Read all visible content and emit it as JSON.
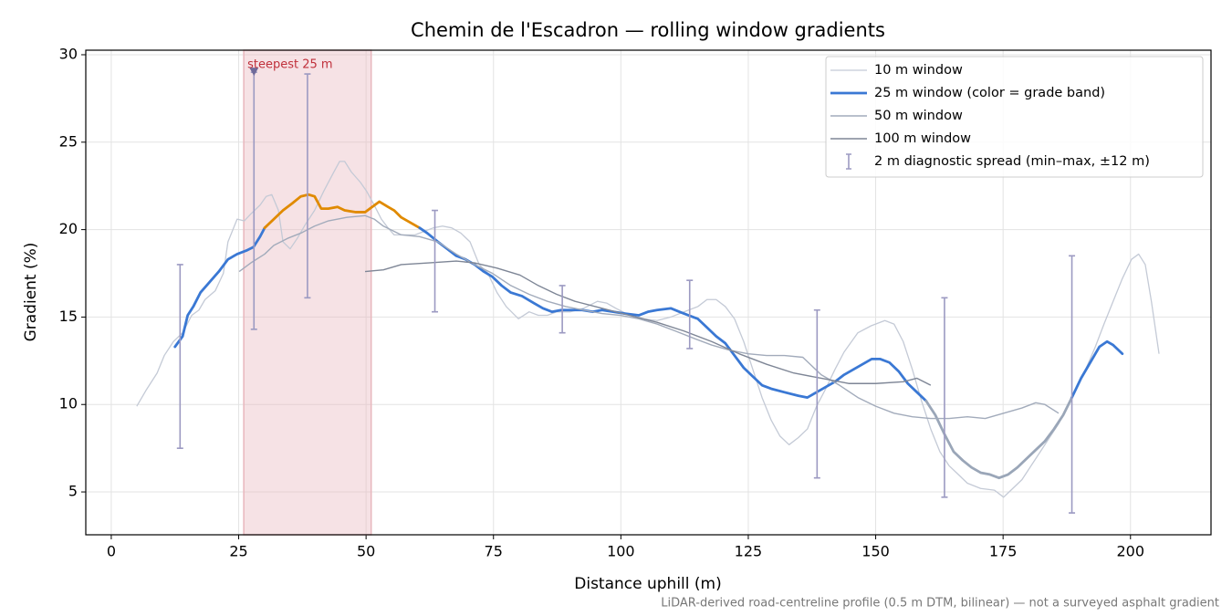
{
  "chart_data": {
    "type": "line",
    "title": "Chemin de l'Escadron — rolling window gradients",
    "x_label": "Distance uphill (m)",
    "y_label": "Gradient (%)",
    "footnote": "LiDAR-derived road-centreline profile (0.5 m DTM, bilinear) — not a surveyed asphalt gradient",
    "xlim": [
      -5,
      215.8
    ],
    "ylim": [
      2.55,
      30.26
    ],
    "xticks": [
      0,
      25,
      50,
      75,
      100,
      125,
      150,
      175,
      200
    ],
    "yticks": [
      5,
      10,
      15,
      20,
      25,
      30
    ],
    "grid": true,
    "legend": "upper right",
    "highlight": {
      "xlim": [
        26,
        51
      ],
      "color": "#e8b7bd",
      "label": "steepest 25 m",
      "label_color": "#c0303b",
      "marker_x": 28,
      "marker_y": 29,
      "marker_color": "#6f6a9a"
    },
    "series": [
      {
        "name": "10 m window",
        "color": "#c4cad6",
        "linewidth": 1.3,
        "x": [
          5,
          6.8,
          9,
          10.4,
          12.2,
          14,
          15.8,
          17.2,
          18.4,
          20.4,
          22,
          22.9,
          24.7,
          26.1,
          27.4,
          29.2,
          30.4,
          31.5,
          32.8,
          33.7,
          35.1,
          36.5,
          38.1,
          39.9,
          41.7,
          43.5,
          44.8,
          45.8,
          47.1,
          48.9,
          50.1,
          51.6,
          53,
          54.3,
          55.5,
          57.8,
          59.6,
          61.4,
          63.2,
          65,
          66.8,
          68.6,
          70.4,
          72.2,
          73.9,
          75.7,
          77.5,
          79.9,
          82,
          83.8,
          85.6,
          87.4,
          90.1,
          92.7,
          95.4,
          97.2,
          99,
          101.7,
          104.4,
          107.1,
          109.8,
          112.4,
          115.1,
          116.9,
          118.7,
          120.5,
          122.3,
          124.1,
          125.9,
          127.7,
          129.5,
          131.2,
          133,
          134.8,
          136.6,
          138.4,
          140.2,
          142,
          143.8,
          146.5,
          149.1,
          151.8,
          153.6,
          155.4,
          157.2,
          159,
          160.8,
          162.6,
          164.4,
          166.2,
          168,
          170.6,
          173.3,
          175.1,
          176.9,
          178.7,
          180.5,
          182.3,
          184.1,
          185.9,
          187.6,
          189.4,
          191.2,
          193.1,
          194.8,
          196.6,
          198.4,
          200.2,
          201.6,
          202.9,
          204.1,
          205.6
        ],
        "values": [
          9.9,
          10.8,
          11.8,
          12.8,
          13.6,
          14.1,
          15.1,
          15.4,
          16,
          16.5,
          17.5,
          19.3,
          20.6,
          20.5,
          20.9,
          21.4,
          21.9,
          22,
          21.1,
          19.3,
          18.9,
          19.5,
          20.3,
          21.1,
          22.2,
          23.2,
          23.9,
          23.9,
          23.3,
          22.7,
          22.2,
          21.4,
          20.6,
          20.1,
          19.7,
          19.7,
          19.7,
          19.9,
          20.1,
          20.2,
          20.1,
          19.8,
          19.3,
          18,
          17.5,
          16.4,
          15.6,
          14.9,
          15.3,
          15.1,
          15.1,
          15.3,
          15.3,
          15.5,
          15.9,
          15.8,
          15.5,
          15.1,
          14.9,
          14.8,
          15,
          15.3,
          15.6,
          16,
          16,
          15.6,
          14.9,
          13.6,
          12,
          10.4,
          9.1,
          8.2,
          7.7,
          8.1,
          8.6,
          9.9,
          10.9,
          12,
          13,
          14.1,
          14.5,
          14.8,
          14.6,
          13.6,
          12,
          10.2,
          8.6,
          7.3,
          6.5,
          6,
          5.5,
          5.2,
          5.1,
          4.7,
          5.2,
          5.7,
          6.5,
          7.3,
          8.1,
          8.9,
          9.9,
          10.9,
          12,
          13.3,
          14.6,
          15.9,
          17.2,
          18.3,
          18.6,
          18,
          15.9,
          12.9
        ]
      },
      {
        "name": "25 m window (color = grade band)",
        "color": "#3a78d4",
        "linewidth": 2.8,
        "band_thresholds": [
          10,
          20
        ],
        "band_colors": [
          "#9aa6b8",
          "#3a78d4",
          "#e08a00"
        ],
        "x": [
          12.5,
          14,
          15,
          16.1,
          17.5,
          19.3,
          21.1,
          22.9,
          24.7,
          26.5,
          27.9,
          29.2,
          30.1,
          31.9,
          33.7,
          35.5,
          37.2,
          38.7,
          39.9,
          41.2,
          42.6,
          44.4,
          45.8,
          48,
          49.8,
          51.2,
          52.6,
          54.3,
          55.5,
          56.9,
          58.7,
          60.5,
          62,
          64.1,
          65.9,
          67.7,
          69.5,
          71.3,
          73.1,
          74.8,
          76.6,
          78.4,
          80.6,
          82.9,
          84.7,
          86.5,
          88.3,
          90.1,
          92.4,
          94.5,
          96.3,
          98.5,
          100.8,
          103.5,
          105.3,
          107.1,
          109.8,
          111.5,
          113.3,
          115.1,
          116.9,
          118.7,
          120.5,
          122.3,
          124.1,
          125.9,
          127.7,
          129.5,
          132.1,
          134.8,
          136.6,
          138.4,
          140.2,
          142,
          143.8,
          145.6,
          147.4,
          149.2,
          150.9,
          152.7,
          154.5,
          156.3,
          158.1,
          159.9,
          161.7,
          163.5,
          165.3,
          167.1,
          168.8,
          170.6,
          172.4,
          174.2,
          176,
          177.8,
          179.6,
          181.4,
          183.2,
          185,
          186.8,
          188.5,
          190.3,
          192.1,
          193.9,
          195.4,
          196.6,
          198.4
        ],
        "values": [
          13.3,
          13.9,
          15.1,
          15.6,
          16.4,
          17,
          17.6,
          18.3,
          18.6,
          18.8,
          19,
          19.6,
          20.1,
          20.6,
          21.1,
          21.5,
          21.9,
          22,
          21.9,
          21.2,
          21.2,
          21.3,
          21.1,
          21,
          21,
          21.3,
          21.6,
          21.3,
          21.1,
          20.7,
          20.4,
          20.1,
          19.8,
          19.3,
          18.9,
          18.5,
          18.3,
          18,
          17.6,
          17.3,
          16.8,
          16.4,
          16.2,
          15.8,
          15.5,
          15.3,
          15.4,
          15.4,
          15.4,
          15.3,
          15.4,
          15.3,
          15.2,
          15.1,
          15.3,
          15.4,
          15.5,
          15.3,
          15.1,
          14.9,
          14.4,
          13.9,
          13.5,
          12.8,
          12.1,
          11.6,
          11.1,
          10.9,
          10.7,
          10.5,
          10.4,
          10.7,
          11,
          11.3,
          11.7,
          12,
          12.3,
          12.6,
          12.6,
          12.4,
          11.9,
          11.2,
          10.7,
          10.2,
          9.4,
          8.3,
          7.3,
          6.8,
          6.4,
          6.1,
          6,
          5.8,
          6,
          6.4,
          6.9,
          7.4,
          7.9,
          8.6,
          9.4,
          10.4,
          11.5,
          12.4,
          13.3,
          13.6,
          13.4,
          12.9
        ]
      },
      {
        "name": "50 m window",
        "color": "#a2abbb",
        "linewidth": 1.4,
        "x": [
          25.1,
          27.4,
          30.1,
          31.9,
          34.6,
          37.2,
          39.9,
          42.6,
          46.2,
          49.8,
          51.6,
          53.4,
          56.9,
          60.5,
          64.1,
          67.7,
          71.3,
          74.8,
          78.4,
          82,
          85.6,
          89.2,
          92.7,
          96.3,
          99.9,
          103.5,
          107.1,
          110.7,
          114.2,
          117.8,
          121.4,
          125,
          128.6,
          132.1,
          135.7,
          139.3,
          142.9,
          146.5,
          150,
          153.6,
          157.2,
          160.8,
          164.4,
          168,
          171.5,
          175.1,
          178.7,
          181.4,
          183.2,
          185.9
        ],
        "values": [
          17.6,
          18.1,
          18.6,
          19.1,
          19.5,
          19.8,
          20.2,
          20.5,
          20.7,
          20.8,
          20.6,
          20.2,
          19.7,
          19.6,
          19.3,
          18.6,
          18,
          17.5,
          16.8,
          16.3,
          15.9,
          15.6,
          15.4,
          15.2,
          15.1,
          14.9,
          14.6,
          14.2,
          13.8,
          13.4,
          13.1,
          12.9,
          12.8,
          12.8,
          12.7,
          11.7,
          11.1,
          10.4,
          9.9,
          9.5,
          9.3,
          9.2,
          9.2,
          9.3,
          9.2,
          9.5,
          9.8,
          10.1,
          10,
          9.5
        ]
      },
      {
        "name": "100 m window",
        "color": "#7e8696",
        "linewidth": 1.4,
        "x": [
          49.8,
          53.4,
          56.9,
          62.3,
          67.7,
          71.3,
          75.7,
          80.2,
          83.8,
          87.4,
          91,
          96.3,
          101.7,
          107.1,
          112.4,
          117.8,
          123.2,
          128.6,
          133.9,
          139.3,
          144.7,
          150,
          155.4,
          158.1,
          160.8
        ],
        "values": [
          17.6,
          17.7,
          18,
          18.1,
          18.2,
          18.1,
          17.8,
          17.4,
          16.8,
          16.3,
          15.9,
          15.5,
          15.1,
          14.7,
          14.2,
          13.6,
          12.9,
          12.3,
          11.8,
          11.5,
          11.2,
          11.2,
          11.3,
          11.5,
          11.1
        ]
      },
      {
        "name": "2 m diagnostic spread (min–max, ±12 m)",
        "kind": "errorbar",
        "color": "#9c9ac2",
        "x": [
          13.5,
          28,
          38.5,
          63.5,
          88.5,
          113.5,
          138.5,
          163.5,
          188.5
        ],
        "low": [
          7.5,
          14.3,
          16.1,
          15.3,
          14.1,
          13.2,
          5.8,
          4.7,
          3.8
        ],
        "high": [
          18,
          29,
          28.9,
          21.1,
          16.8,
          17.1,
          15.4,
          16.1,
          18.5
        ]
      }
    ]
  }
}
